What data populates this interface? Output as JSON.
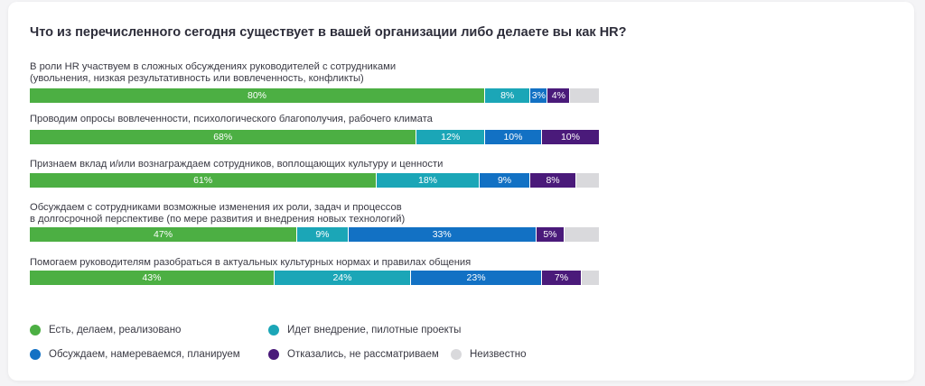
{
  "chart_data": {
    "type": "bar",
    "orientation": "horizontal-stacked",
    "title": "Что из перечисленного сегодня существует в вашей организации либо делаете вы как HR?",
    "categories": [
      "В роли HR участвуем в сложных обсуждениях руководителей с сотрудниками\n(увольнения, низкая результативность или вовлеченность, конфликты)",
      "Проводим опросы вовлеченности, психологического благополучия, рабочего климата",
      "Признаем вклад и/или вознаграждаем сотрудников, воплощающих культуру и ценности",
      "Обсуждаем с сотрудниками возможные изменения их роли, задач и процессов\nв долгосрочной перспективе (по мере развития и внедрения новых технологий)",
      "Помогаем руководителям разобраться в актуальных культурных нормах и правилах общения"
    ],
    "series": [
      {
        "name": "Есть, делаем, реализовано",
        "color": "#4caf43",
        "values": [
          80,
          68,
          61,
          47,
          43
        ]
      },
      {
        "name": "Идет внедрение, пилотные проекты",
        "color": "#1ba6b7",
        "values": [
          8,
          12,
          18,
          9,
          24
        ]
      },
      {
        "name": "Обсуждаем, намереваемся, планируем",
        "color": "#1271c4",
        "values": [
          3,
          10,
          9,
          33,
          23
        ]
      },
      {
        "name": "Отказались, не рассматриваем",
        "color": "#4a1a7a",
        "values": [
          4,
          10,
          8,
          5,
          7
        ]
      },
      {
        "name": "Неизвестно",
        "color": "#d9d9dc",
        "values": [
          5,
          0,
          4,
          6,
          3
        ]
      }
    ],
    "value_labels": [
      [
        "80%",
        "8%",
        "3%",
        "4%",
        ""
      ],
      [
        "68%",
        "12%",
        "10%",
        "10%",
        ""
      ],
      [
        "61%",
        "18%",
        "9%",
        "8%",
        ""
      ],
      [
        "47%",
        "9%",
        "33%",
        "5%",
        ""
      ],
      [
        "43%",
        "24%",
        "23%",
        "7%",
        ""
      ]
    ],
    "xlim": [
      0,
      100
    ],
    "legend_position": "bottom-left",
    "grid": false
  }
}
